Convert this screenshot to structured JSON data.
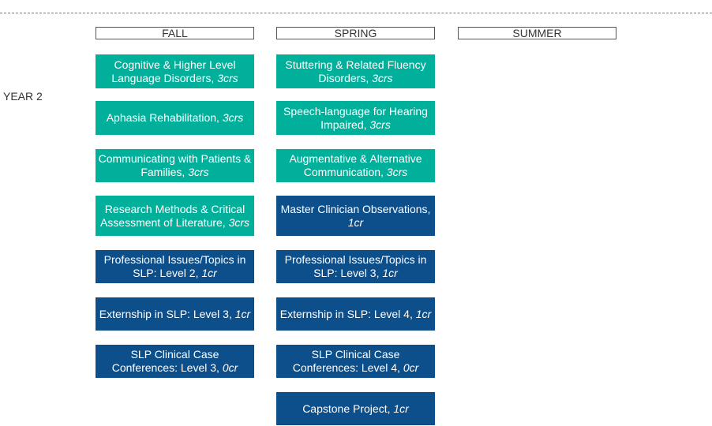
{
  "year_label": "YEAR 2",
  "colors": {
    "general": "#00b09b",
    "clinical": "#0d4f8b"
  },
  "terms": [
    {
      "label": "FALL",
      "courses": [
        {
          "name": "Cognitive & Higher Level Language Disorders, ",
          "credits": "3crs",
          "type": "general"
        },
        {
          "name": "Aphasia Rehabilitation, ",
          "credits": "3crs",
          "type": "general"
        },
        {
          "name": "Communicating with Patients & Families, ",
          "credits": "3crs",
          "type": "general"
        },
        {
          "name": "Research Methods & Critical Assessment of Literature, ",
          "credits": "3crs",
          "type": "general"
        },
        {
          "name": "Professional Issues/Topics in SLP: Level 2, ",
          "credits": "1cr",
          "type": "clinical"
        },
        {
          "name": "Externship in SLP: Level 3, ",
          "credits": "1cr",
          "type": "clinical"
        },
        {
          "name": "SLP Clinical Case Conferences: Level 3, ",
          "credits": "0cr",
          "type": "clinical"
        }
      ]
    },
    {
      "label": "SPRING",
      "courses": [
        {
          "name": "Stuttering & Related Fluency Disorders, ",
          "credits": "3crs",
          "type": "general"
        },
        {
          "name": "Speech-language for Hearing Impaired, ",
          "credits": "3crs",
          "type": "general"
        },
        {
          "name": "Augmentative & Alternative Communication, ",
          "credits": "3crs",
          "type": "general"
        },
        {
          "name": "Master Clinician Observations, ",
          "credits": "1cr",
          "type": "clinical"
        },
        {
          "name": "Professional Issues/Topics in SLP: Level 3, ",
          "credits": "1cr",
          "type": "clinical"
        },
        {
          "name": "Externship in SLP: Level 4, ",
          "credits": "1cr",
          "type": "clinical"
        },
        {
          "name": "SLP Clinical Case Conferences: Level 4, ",
          "credits": "0cr",
          "type": "clinical"
        },
        {
          "name": "Capstone Project, ",
          "credits": "1cr",
          "type": "clinical"
        }
      ]
    },
    {
      "label": "SUMMER",
      "courses": []
    }
  ]
}
